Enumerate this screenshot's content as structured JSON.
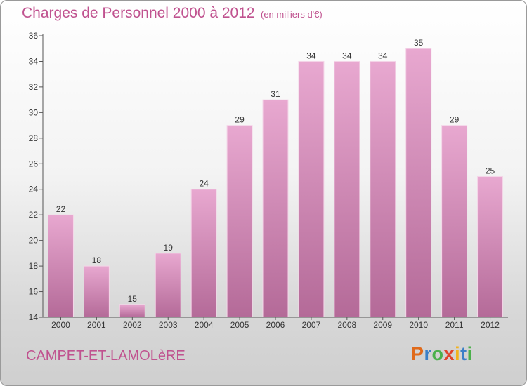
{
  "header": {
    "title": "Charges de Personnel 2000 à 2012",
    "subtitle": "(en milliers d'€)"
  },
  "footer": {
    "commune": "CAMPET-ET-LAMOLèRE",
    "logo_letters": [
      {
        "ch": "P",
        "color": "#e06a1a"
      },
      {
        "ch": "r",
        "color": "#3a7fc7"
      },
      {
        "ch": "o",
        "color": "#4bb04b"
      },
      {
        "ch": "x",
        "color": "#e0442b"
      },
      {
        "ch": "i",
        "color": "#f2b21d"
      },
      {
        "ch": "t",
        "color": "#3a7fc7"
      },
      {
        "ch": "i",
        "color": "#4bb04b"
      }
    ]
  },
  "colors": {
    "bar_light": "#e8a8d0",
    "bar_dark": "#b46a98",
    "accent": "#c0528f"
  },
  "chart_data": {
    "type": "bar",
    "categories": [
      "2000",
      "2001",
      "2002",
      "2003",
      "2004",
      "2005",
      "2006",
      "2007",
      "2008",
      "2009",
      "2010",
      "2011",
      "2012"
    ],
    "values": [
      22,
      18,
      15,
      19,
      24,
      29,
      31,
      34,
      34,
      34,
      35,
      29,
      25
    ],
    "ylim": [
      14,
      36
    ],
    "yticks": [
      14,
      16,
      18,
      20,
      22,
      24,
      26,
      28,
      30,
      32,
      34,
      36
    ],
    "title": "Charges de Personnel 2000 à 2012",
    "subtitle": "(en milliers d'€)",
    "grid": false,
    "data_labels": true
  }
}
